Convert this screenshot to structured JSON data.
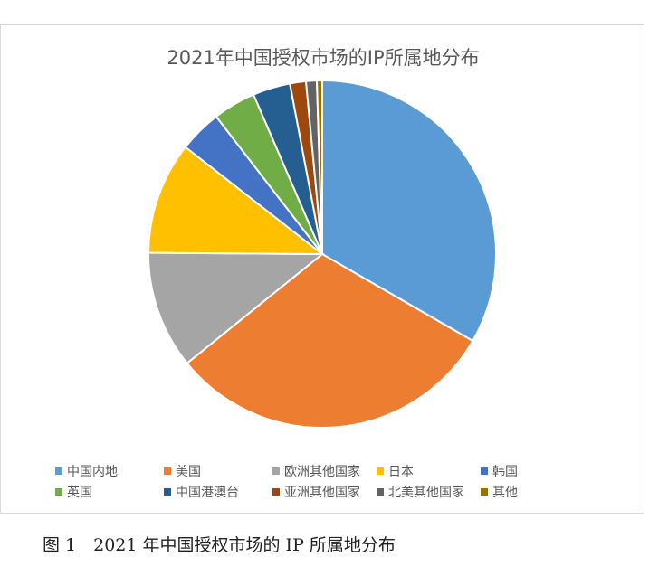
{
  "chart_data": {
    "type": "pie",
    "title": "2021年中国授权市场的IP所属地分布",
    "categories": [
      "中国内地",
      "美国",
      "欧洲其他国家",
      "日本",
      "韩国",
      "英国",
      "中国港澳台",
      "亚洲其他国家",
      "北美其他国家",
      "其他"
    ],
    "values": [
      33.5,
      31.0,
      11.0,
      10.5,
      4.0,
      4.0,
      3.5,
      1.5,
      1.0,
      0.5
    ],
    "colors": [
      "#5b9bd5",
      "#ed7d31",
      "#a5a5a5",
      "#ffc000",
      "#4472c4",
      "#70ad47",
      "#255e91",
      "#9e480e",
      "#636363",
      "#997300"
    ],
    "legend": "bottom",
    "start_angle_deg": 0,
    "direction": "clockwise"
  },
  "caption": "图 1　2021 年中国授权市场的 IP 所属地分布"
}
